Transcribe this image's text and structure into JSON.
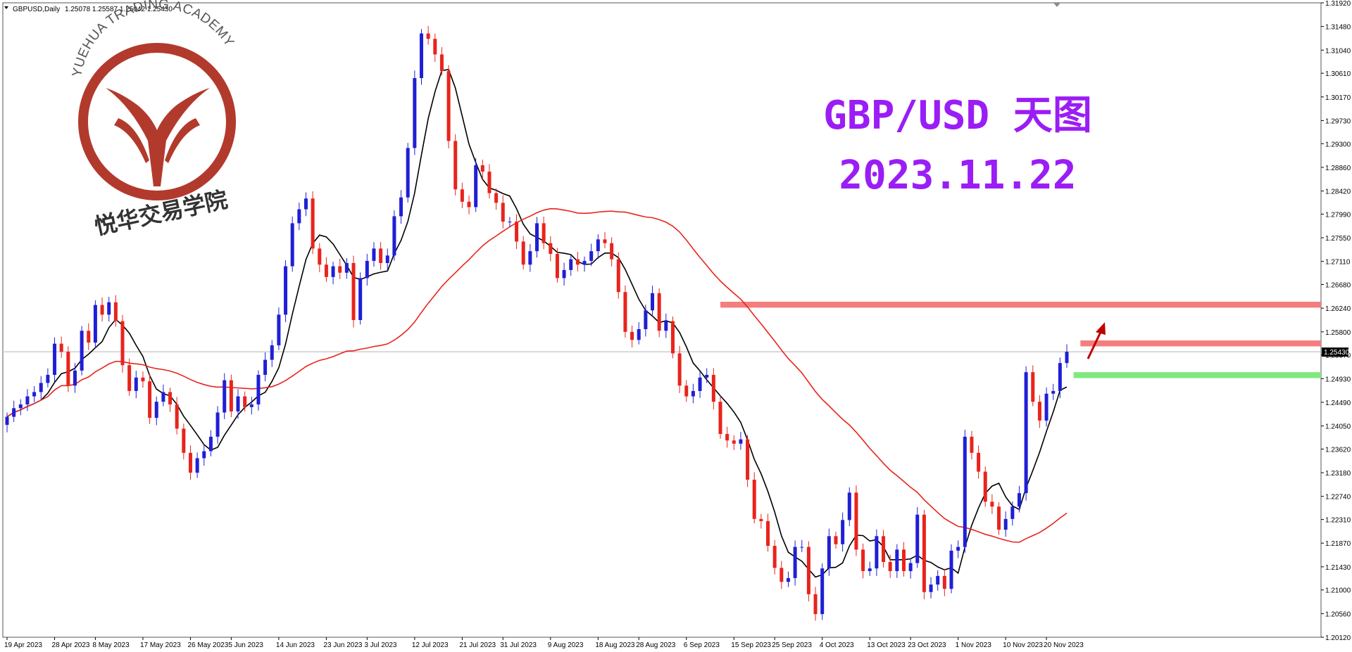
{
  "chart_data": {
    "type": "candlestick",
    "header": {
      "symbol": "GBPUSD,Daily",
      "ohlc": "1.25078 1.25587 1.25042 1.25430"
    },
    "overlay_title": {
      "line1": "GBP/USD 天图",
      "line2": "2023.11.22"
    },
    "logo": {
      "arc_text": "YUEHUA TRADING ACADEMY",
      "cn_text": "悦华交易学院"
    },
    "ylim": [
      1.2012,
      1.3192
    ],
    "y_ticks": [
      "1.31920",
      "1.31480",
      "1.31040",
      "1.30610",
      "1.30170",
      "1.29730",
      "1.29300",
      "1.28860",
      "1.28420",
      "1.27990",
      "1.27550",
      "1.27110",
      "1.26680",
      "1.26240",
      "1.25800",
      "1.25370",
      "1.24930",
      "1.24490",
      "1.24050",
      "1.23620",
      "1.23180",
      "1.22740",
      "1.22310",
      "1.21870",
      "1.21430",
      "1.21000",
      "1.20560",
      "1.20120"
    ],
    "x_ticks": [
      {
        "label": "19 Apr 2023",
        "index": 0
      },
      {
        "label": "28 Apr 2023",
        "index": 7
      },
      {
        "label": "8 May 2023",
        "index": 13
      },
      {
        "label": "17 May 2023",
        "index": 20
      },
      {
        "label": "26 May 2023",
        "index": 27
      },
      {
        "label": "5 Jun 2023",
        "index": 33
      },
      {
        "label": "14 Jun 2023",
        "index": 40
      },
      {
        "label": "23 Jun 2023",
        "index": 47
      },
      {
        "label": "3 Jul 2023",
        "index": 53
      },
      {
        "label": "12 Jul 2023",
        "index": 60
      },
      {
        "label": "21 Jul 2023",
        "index": 67
      },
      {
        "label": "31 Jul 2023",
        "index": 73
      },
      {
        "label": "9 Aug 2023",
        "index": 80
      },
      {
        "label": "18 Aug 2023",
        "index": 87
      },
      {
        "label": "28 Aug 2023",
        "index": 93
      },
      {
        "label": "6 Sep 2023",
        "index": 100
      },
      {
        "label": "15 Sep 2023",
        "index": 107
      },
      {
        "label": "25 Sep 2023",
        "index": 113
      },
      {
        "label": "4 Oct 2023",
        "index": 120
      },
      {
        "label": "13 Oct 2023",
        "index": 127
      },
      {
        "label": "23 Oct 2023",
        "index": 133
      },
      {
        "label": "1 Nov 2023",
        "index": 140
      },
      {
        "label": "10 Nov 2023",
        "index": 147
      },
      {
        "label": "20 Nov 2023",
        "index": 153
      }
    ],
    "current_price": {
      "value": 1.2543,
      "label": "1.25430"
    },
    "closes": [
      1.2422,
      1.2438,
      1.2445,
      1.246,
      1.2468,
      1.2485,
      1.25,
      1.2558,
      1.2543,
      1.248,
      1.2508,
      1.2582,
      1.256,
      1.263,
      1.2612,
      1.2635,
      1.26,
      1.2518,
      1.247,
      1.2495,
      1.2488,
      1.242,
      1.245,
      1.2468,
      1.2445,
      1.24,
      1.2355,
      1.2318,
      1.2345,
      1.2358,
      1.2385,
      1.243,
      1.249,
      1.2432,
      1.246,
      1.244,
      1.2445,
      1.25,
      1.2528,
      1.2555,
      1.2612,
      1.2702,
      1.2782,
      1.2808,
      1.2828,
      1.2735,
      1.2705,
      1.2682,
      1.2702,
      1.269,
      1.2708,
      1.2602,
      1.268,
      1.2712,
      1.2735,
      1.2708,
      1.2722,
      1.2795,
      1.283,
      1.2922,
      1.3052,
      1.3135,
      1.3125,
      1.3096,
      1.3065,
      1.2935,
      1.2845,
      1.2822,
      1.2812,
      1.289,
      1.2878,
      1.2838,
      1.282,
      1.2785,
      1.2785,
      1.2748,
      1.2705,
      1.273,
      1.2782,
      1.2745,
      1.2725,
      1.268,
      1.2695,
      1.2715,
      1.2705,
      1.2712,
      1.273,
      1.2752,
      1.2745,
      1.2715,
      1.2654,
      1.258,
      1.2565,
      1.2585,
      1.262,
      1.2652,
      1.2582,
      1.26,
      1.254,
      1.248,
      1.246,
      1.247,
      1.2495,
      1.25,
      1.245,
      1.239,
      1.2378,
      1.2372,
      1.238,
      1.2305,
      1.2232,
      1.2228,
      1.2182,
      1.2141,
      1.2115,
      1.2122,
      1.218,
      1.218,
      1.2092,
      1.2055,
      1.214,
      1.22,
      1.2185,
      1.223,
      1.2281,
      1.2175,
      1.2135,
      1.214,
      1.22,
      1.2152,
      1.2135,
      1.2175,
      1.2135,
      1.215,
      1.224,
      1.2096,
      1.211,
      1.2126,
      1.2102,
      1.2173,
      1.218,
      1.2385,
      1.2355,
      1.232,
      1.2264,
      1.2255,
      1.2212,
      1.2232,
      1.2255,
      1.228,
      1.2505,
      1.245,
      1.2415,
      1.2465,
      1.247,
      1.2522,
      1.2543
    ],
    "series": [
      {
        "name": "",
        "color": "#000000",
        "values": []
      },
      {
        "name": "",
        "color": "#e8241c",
        "values": []
      }
    ],
    "zones": [
      {
        "color": "#f47e7e",
        "from_index": 105,
        "low": 1.2625,
        "high": 1.2636
      },
      {
        "color": "#f47e7e",
        "from_index": 158,
        "low": 1.2553,
        "high": 1.2564
      },
      {
        "color": "#7fe87f",
        "from_index": 157,
        "low": 1.2494,
        "high": 1.2505
      }
    ],
    "arrow": {
      "color": "#c00000",
      "direction": "up"
    },
    "colors": {
      "bull": "#1f1fd6",
      "bear": "#e8241c",
      "current_line": "#b5b5b5"
    },
    "grid": false
  }
}
